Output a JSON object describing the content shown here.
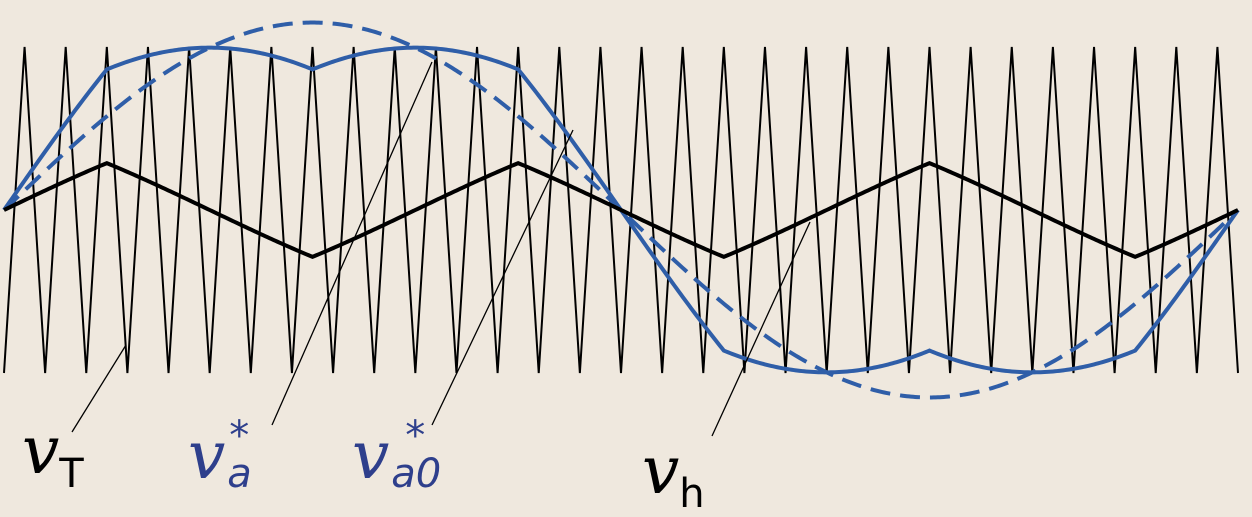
{
  "colors": {
    "background": "#efe8de",
    "carrier": "#000000",
    "reference": "#2f5ea8",
    "label_blue": "#2e3f8c"
  },
  "waveforms": {
    "carrier_cycles": 30,
    "modulation_cycles": 1,
    "reference_amplitude": 1.15,
    "harmonic_order": 3
  },
  "labels": {
    "vT": {
      "main": "v",
      "sub": "T"
    },
    "va": {
      "main": "v",
      "sub": "a",
      "sup": "*"
    },
    "va0": {
      "main": "v",
      "sub": "a0",
      "sup": "*"
    },
    "vh": {
      "main": "v",
      "sub": "h"
    }
  }
}
